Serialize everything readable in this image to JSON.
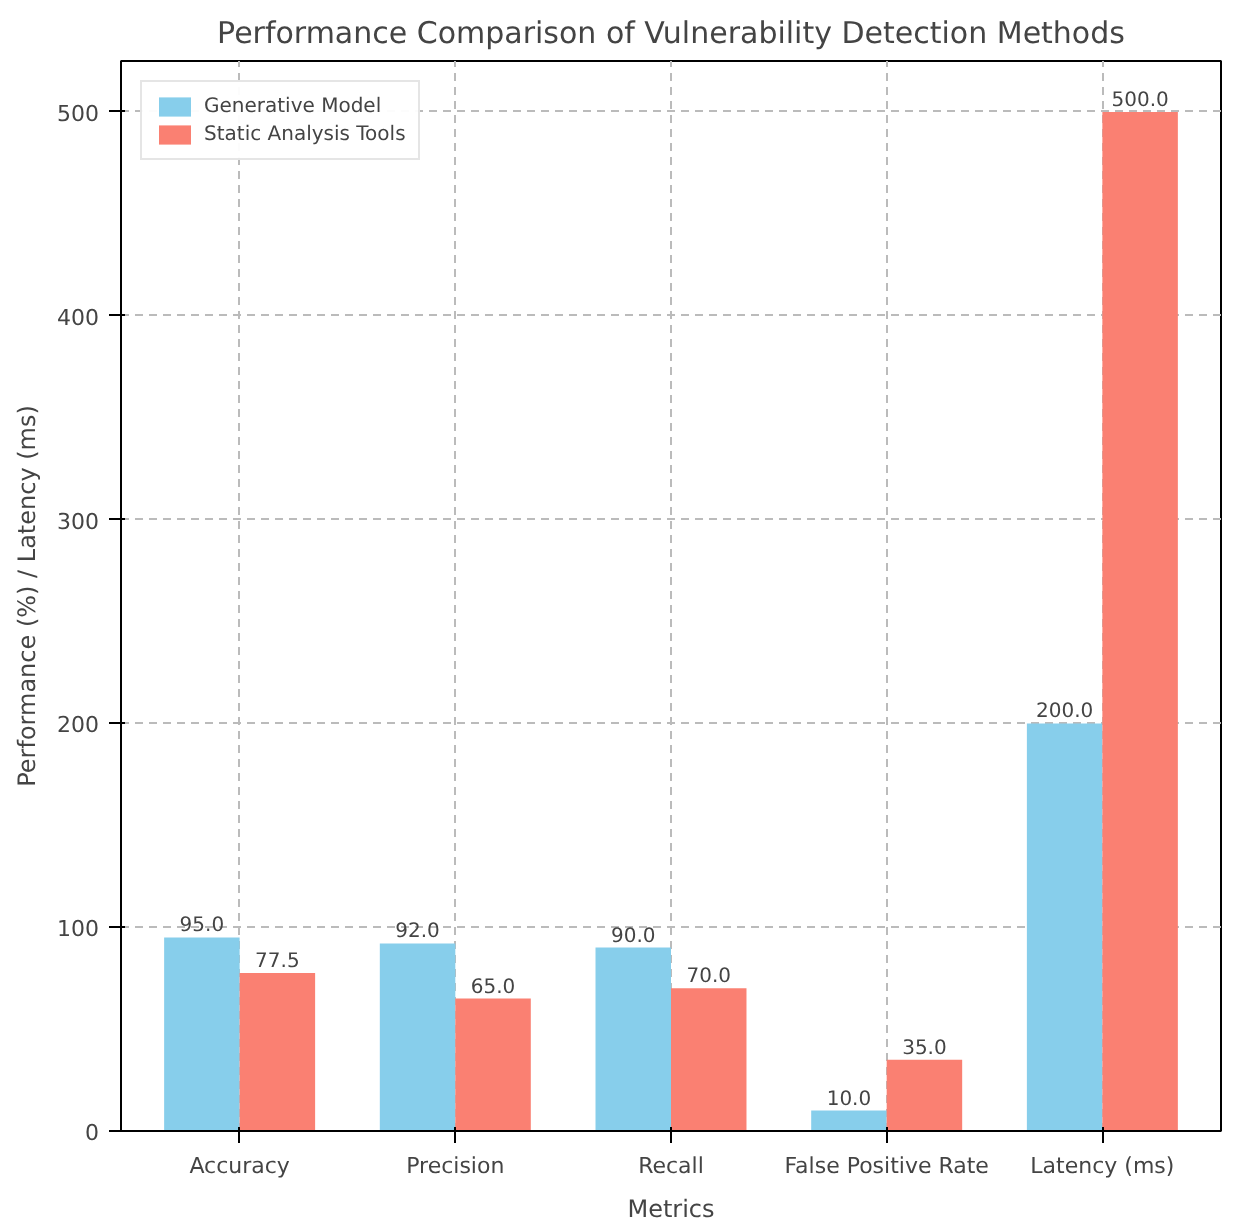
{
  "chart_data": {
    "type": "bar",
    "title": "Performance Comparison of Vulnerability Detection Methods",
    "xlabel": "Metrics",
    "ylabel": "Performance (%) / Latency (ms)",
    "categories": [
      "Accuracy",
      "Precision",
      "Recall",
      "False Positive Rate",
      "Latency (ms)"
    ],
    "series": [
      {
        "name": "Generative Model",
        "color": "#87ceeb",
        "values": [
          95.0,
          92.0,
          90.0,
          10.0,
          200.0
        ],
        "value_labels": [
          "95.0",
          "92.0",
          "90.0",
          "10.0",
          "200.0"
        ]
      },
      {
        "name": "Static Analysis Tools",
        "color": "#fa8072",
        "values": [
          77.5,
          65.0,
          70.0,
          35.0,
          500.0
        ],
        "value_labels": [
          "77.5",
          "65.0",
          "70.0",
          "35.0",
          "500.0"
        ]
      }
    ],
    "ylim": [
      0,
      525
    ],
    "yticks": [
      0,
      100,
      200,
      300,
      400,
      500
    ],
    "grid": true,
    "legend": "top left"
  }
}
